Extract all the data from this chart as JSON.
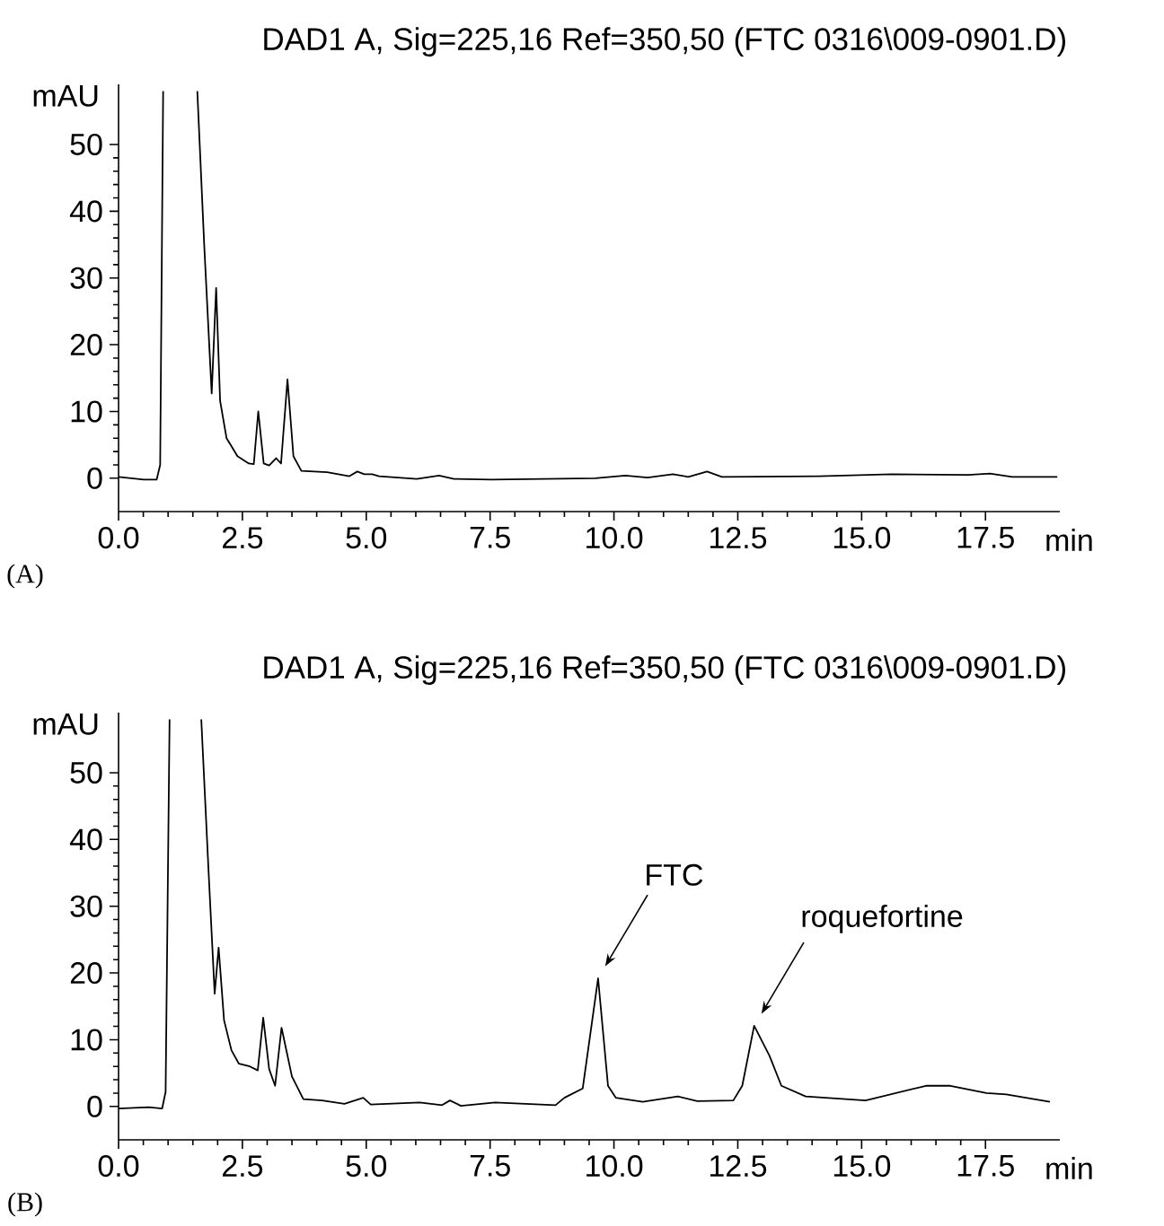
{
  "chart_data": [
    {
      "type": "line",
      "title": "DAD1  A, Sig=225,16  Ref=350,50 (FTC 0316\\009-0901.D)",
      "xlabel": "min",
      "ylabel": "mAU",
      "color": "#000000",
      "x": [
        0,
        0.51,
        0.77,
        0.84,
        0.9,
        1.2,
        1.59,
        1.73,
        1.88,
        1.97,
        2.05,
        2.18,
        2.4,
        2.63,
        2.73,
        2.82,
        2.93,
        3.04,
        3.18,
        3.28,
        3.41,
        3.53,
        3.69,
        4.21,
        4.66,
        4.82,
        4.96,
        5.12,
        5.26,
        6.02,
        6.47,
        6.77,
        7.52,
        9.62,
        10.23,
        10.68,
        11.19,
        11.5,
        11.88,
        12.18,
        14.13,
        15.61,
        17.15,
        17.59,
        18.04,
        18.95
      ],
      "values": [
        0.2,
        -0.2,
        -0.2,
        2,
        58,
        null,
        58,
        34.8,
        12.7,
        28.5,
        11.6,
        6,
        3.3,
        2.2,
        2.1,
        10,
        2.2,
        1.9,
        3.0,
        2.2,
        14.8,
        3.3,
        1.1,
        0.9,
        0.3,
        1.0,
        0.6,
        0.6,
        0.3,
        -0.1,
        0.4,
        -0.1,
        -0.2,
        0,
        0.4,
        0.1,
        0.6,
        0.2,
        1.0,
        0.2,
        0.3,
        0.6,
        0.5,
        0.7,
        0.2,
        0.2
      ],
      "xlim": [
        0,
        19
      ],
      "ylim": [
        -5,
        59
      ],
      "xticks": [
        {
          "value": 0,
          "label": "0.0"
        },
        {
          "value": 2.5,
          "label": "2.5"
        },
        {
          "value": 5,
          "label": "5.0"
        },
        {
          "value": 7.5,
          "label": "7.5"
        },
        {
          "value": 10,
          "label": "10.0"
        },
        {
          "value": 12.5,
          "label": "12.5"
        },
        {
          "value": 15,
          "label": "15.0"
        },
        {
          "value": 17.5,
          "label": "17.5"
        }
      ],
      "yticks": [
        0,
        10,
        20,
        30,
        40,
        50
      ],
      "annotations": [
        "(A)"
      ]
    },
    {
      "type": "line",
      "title": "DAD1 A,  Sig=225,16 Ref=350,50  (FTC 0316\\009-0901.D)",
      "xlabel": "min",
      "ylabel": "mAU",
      "color": "#000000",
      "x": [
        0,
        0.61,
        0.88,
        0.95,
        1.03,
        1.3,
        1.67,
        1.82,
        1.94,
        2.02,
        2.13,
        2.28,
        2.43,
        2.65,
        2.81,
        2.92,
        3.04,
        3.16,
        3.29,
        3.5,
        3.73,
        4.11,
        4.56,
        4.94,
        5.09,
        6.08,
        6.53,
        6.69,
        6.91,
        7.6,
        8.82,
        9.0,
        9.37,
        9.68,
        9.88,
        10.04,
        10.58,
        11.29,
        11.68,
        12.41,
        12.59,
        12.83,
        13.14,
        13.38,
        13.87,
        15.08,
        16.3,
        16.79,
        17.52,
        17.92,
        18.8
      ],
      "values": [
        -0.3,
        -0.1,
        -0.3,
        2.2,
        58,
        null,
        58,
        34.8,
        16.9,
        23.8,
        12.9,
        8.4,
        6.4,
        6.0,
        5.4,
        13.3,
        5.6,
        3.1,
        11.8,
        4.5,
        1.1,
        0.9,
        0.4,
        1.3,
        0.3,
        0.6,
        0.2,
        0.9,
        0.1,
        0.6,
        0.2,
        1.3,
        2.7,
        19.2,
        3.1,
        1.3,
        0.7,
        1.5,
        0.8,
        0.9,
        3.1,
        12.1,
        7.6,
        3.1,
        1.5,
        0.9,
        3.1,
        3.1,
        2.0,
        1.8,
        0.7
      ],
      "xlim": [
        0,
        19
      ],
      "ylim": [
        -5,
        59
      ],
      "xticks": [
        {
          "value": 0,
          "label": "0.0"
        },
        {
          "value": 2.5,
          "label": "2.5"
        },
        {
          "value": 5,
          "label": "5.0"
        },
        {
          "value": 7.5,
          "label": "7.5"
        },
        {
          "value": 10,
          "label": "10.0"
        },
        {
          "value": 12.5,
          "label": "12.5"
        },
        {
          "value": 15,
          "label": "15.0"
        },
        {
          "value": 17.5,
          "label": "17.5"
        }
      ],
      "yticks": [
        0,
        10,
        20,
        30,
        40,
        50
      ],
      "annotations": [
        "FTC",
        "roquefortine",
        "(B)"
      ]
    }
  ]
}
